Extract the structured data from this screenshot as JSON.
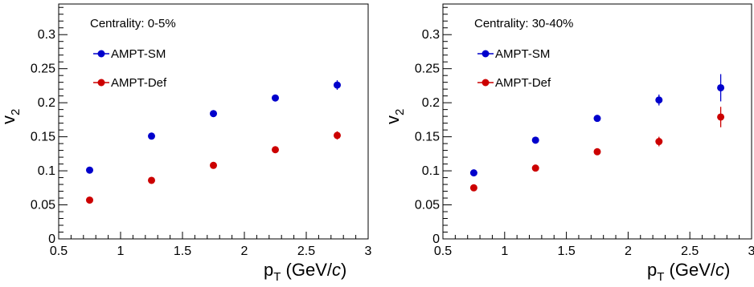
{
  "chart_data": [
    {
      "type": "scatter",
      "annotation": "Centrality: 0-5%",
      "xlabel": {
        "main": "p",
        "sub": "T",
        "unit_open": " (GeV/",
        "unit_italic": "c",
        "unit_close": ")"
      },
      "ylabel": {
        "main": "v",
        "sub": "2"
      },
      "xlim": [
        0.5,
        3.0
      ],
      "ylim": [
        0.0,
        0.345
      ],
      "xticks": [
        "0.5",
        "1",
        "1.5",
        "2",
        "2.5",
        "3"
      ],
      "yticks": [
        "0",
        "0.05",
        "0.1",
        "0.15",
        "0.2",
        "0.25",
        "0.3"
      ],
      "legend_position": "top-left",
      "series": [
        {
          "name": "AMPT-SM",
          "color": "#0000cc",
          "x": [
            0.75,
            1.25,
            1.75,
            2.25,
            2.75
          ],
          "y": [
            0.101,
            0.151,
            0.184,
            0.207,
            0.226
          ],
          "err": [
            0.002,
            0.002,
            0.002,
            0.003,
            0.007
          ]
        },
        {
          "name": "AMPT-Def",
          "color": "#cc0000",
          "x": [
            0.75,
            1.25,
            1.75,
            2.25,
            2.75
          ],
          "y": [
            0.057,
            0.086,
            0.108,
            0.131,
            0.152
          ],
          "err": [
            0.002,
            0.002,
            0.002,
            0.003,
            0.006
          ]
        }
      ]
    },
    {
      "type": "scatter",
      "annotation": "Centrality: 30-40%",
      "xlabel": {
        "main": "p",
        "sub": "T",
        "unit_open": " (GeV/",
        "unit_italic": "c",
        "unit_close": ")"
      },
      "ylabel": {
        "main": "v",
        "sub": "2"
      },
      "xlim": [
        0.5,
        3.0
      ],
      "ylim": [
        0.0,
        0.345
      ],
      "xticks": [
        "0.5",
        "1",
        "1.5",
        "2",
        "2.5",
        "3"
      ],
      "yticks": [
        "0",
        "0.05",
        "0.1",
        "0.15",
        "0.2",
        "0.25",
        "0.3"
      ],
      "legend_position": "top-left",
      "series": [
        {
          "name": "AMPT-SM",
          "color": "#0000cc",
          "x": [
            0.75,
            1.25,
            1.75,
            2.25,
            2.75
          ],
          "y": [
            0.097,
            0.145,
            0.177,
            0.204,
            0.222
          ],
          "err": [
            0.002,
            0.002,
            0.003,
            0.008,
            0.02
          ]
        },
        {
          "name": "AMPT-Def",
          "color": "#cc0000",
          "x": [
            0.75,
            1.25,
            1.75,
            2.25,
            2.75
          ],
          "y": [
            0.075,
            0.104,
            0.128,
            0.143,
            0.179
          ],
          "err": [
            0.002,
            0.002,
            0.003,
            0.007,
            0.015
          ]
        }
      ]
    }
  ]
}
